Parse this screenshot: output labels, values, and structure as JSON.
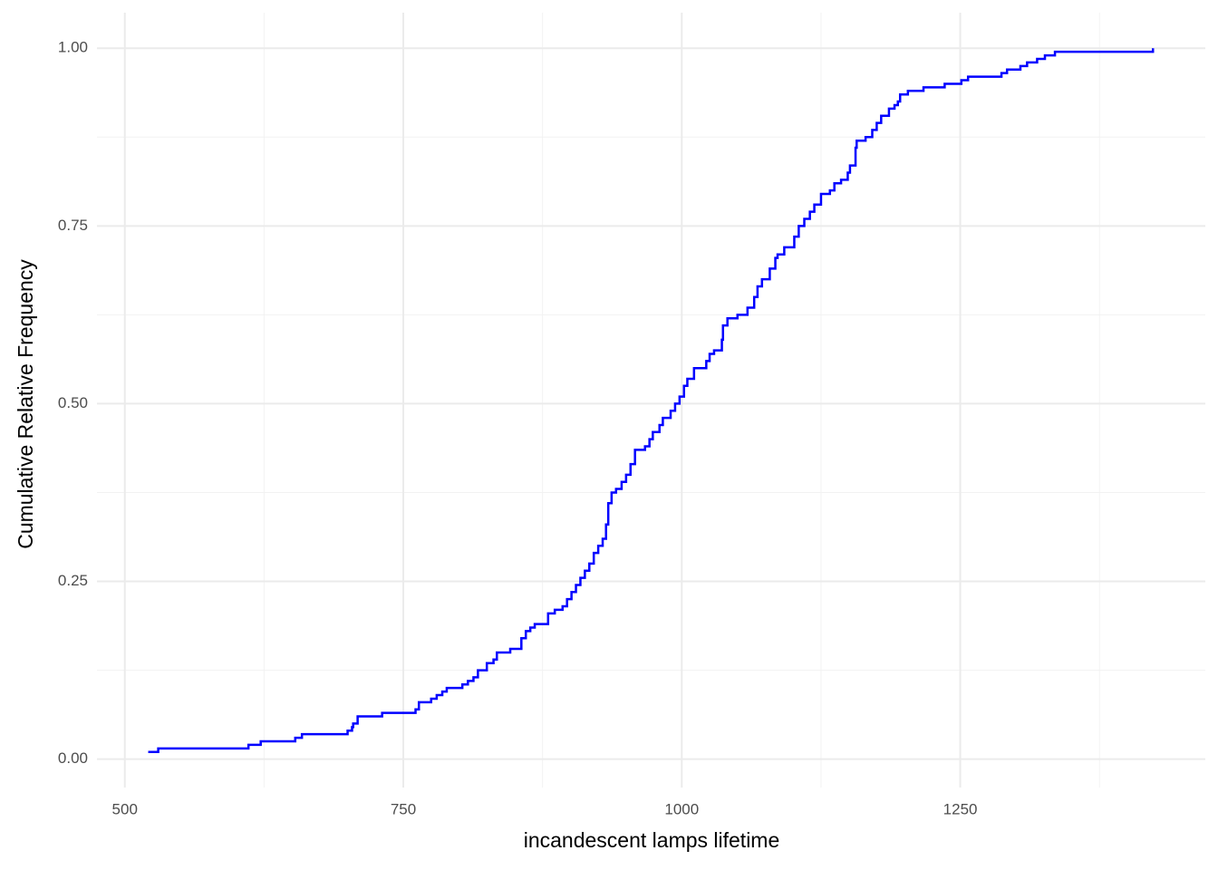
{
  "chart_data": {
    "type": "step",
    "x_label": "incandescent lamps lifetime",
    "y_label": "Cumulative Relative Frequency",
    "color": "#0000ff",
    "grid": true,
    "xlim": [
      475,
      1470
    ],
    "ylim": [
      -0.04,
      1.05
    ],
    "xticks": [
      500,
      750,
      1000,
      1250
    ],
    "yticks": [
      {
        "value": 0,
        "label": "0.00"
      },
      {
        "value": 0.25,
        "label": "0.25"
      },
      {
        "value": 0.5,
        "label": "0.50"
      },
      {
        "value": 0.75,
        "label": "0.75"
      },
      {
        "value": 1,
        "label": "1.00"
      }
    ],
    "x_minor_ticks": [
      625,
      875,
      1125,
      1375
    ],
    "y_minor_ticks": [
      0.125,
      0.375,
      0.625,
      0.875
    ],
    "x": [
      521,
      530,
      611,
      622,
      653,
      659,
      700,
      704,
      705,
      709,
      731,
      761,
      764,
      775,
      780,
      785,
      789,
      803,
      808,
      813,
      817,
      825,
      831,
      834,
      846,
      856,
      860,
      864,
      868,
      880,
      886,
      893,
      897,
      901,
      905,
      909,
      913,
      917,
      921,
      925,
      929,
      932,
      934,
      937,
      941,
      946,
      950,
      954,
      958,
      967,
      971,
      974,
      980,
      983,
      990,
      994,
      998,
      1002,
      1005,
      1011,
      1022,
      1025,
      1029,
      1036,
      1037,
      1041,
      1050,
      1059,
      1065,
      1068,
      1072,
      1079,
      1084,
      1086,
      1092,
      1101,
      1105,
      1110,
      1115,
      1119,
      1125,
      1133,
      1137,
      1143,
      1149,
      1151,
      1156,
      1157,
      1165,
      1171,
      1175,
      1179,
      1186,
      1191,
      1194,
      1196,
      1203,
      1217,
      1236,
      1251,
      1257,
      1287,
      1292,
      1304,
      1310,
      1319,
      1326,
      1335,
      1340,
      1423
    ],
    "y": [
      0.01,
      0.015,
      0.02,
      0.025,
      0.03,
      0.035,
      0.04,
      0.045,
      0.05,
      0.06,
      0.065,
      0.07,
      0.08,
      0.085,
      0.09,
      0.095,
      0.1,
      0.105,
      0.11,
      0.115,
      0.125,
      0.135,
      0.14,
      0.15,
      0.155,
      0.17,
      0.18,
      0.185,
      0.19,
      0.205,
      0.21,
      0.215,
      0.225,
      0.235,
      0.245,
      0.255,
      0.265,
      0.275,
      0.29,
      0.3,
      0.31,
      0.33,
      0.36,
      0.375,
      0.38,
      0.39,
      0.4,
      0.415,
      0.435,
      0.44,
      0.45,
      0.46,
      0.47,
      0.48,
      0.49,
      0.5,
      0.51,
      0.525,
      0.535,
      0.55,
      0.56,
      0.57,
      0.575,
      0.59,
      0.61,
      0.62,
      0.625,
      0.635,
      0.65,
      0.665,
      0.675,
      0.69,
      0.705,
      0.71,
      0.72,
      0.735,
      0.75,
      0.76,
      0.77,
      0.78,
      0.795,
      0.8,
      0.81,
      0.815,
      0.825,
      0.835,
      0.86,
      0.87,
      0.875,
      0.885,
      0.895,
      0.905,
      0.915,
      0.92,
      0.925,
      0.935,
      0.94,
      0.945,
      0.95,
      0.955,
      0.96,
      0.965,
      0.97,
      0.975,
      0.98,
      0.985,
      0.99,
      0.995,
      0.995,
      1
    ]
  }
}
